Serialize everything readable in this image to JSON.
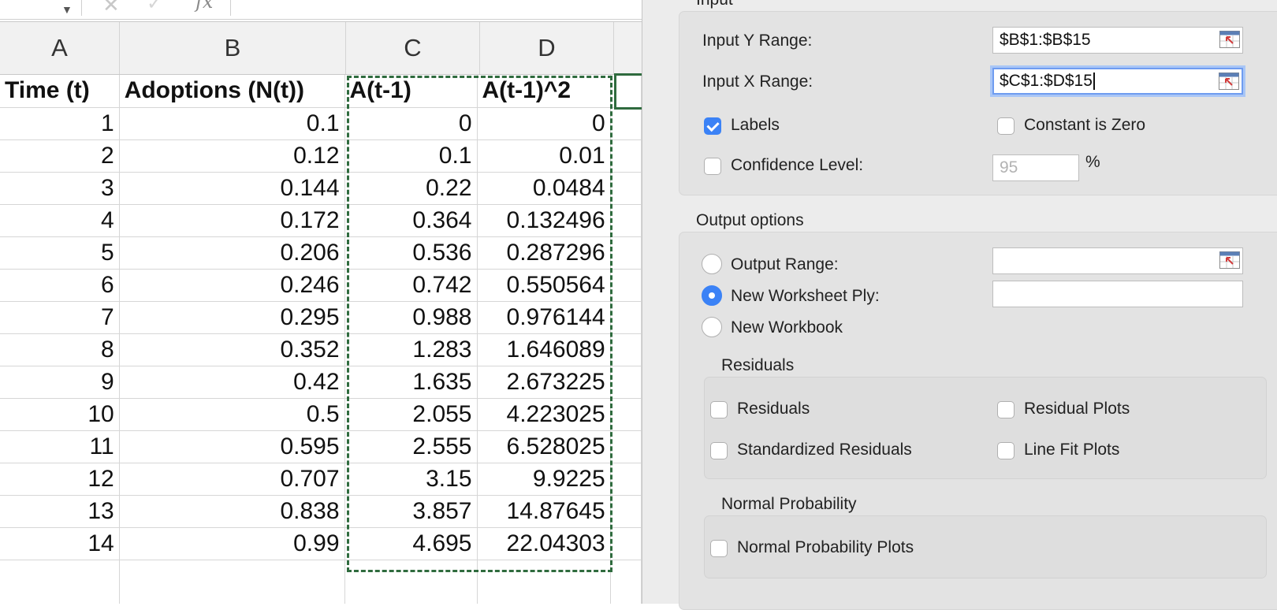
{
  "formula_bar": {
    "fx_label": "fx"
  },
  "columns": [
    "A",
    "B",
    "C",
    "D"
  ],
  "headers": [
    "Time (t)",
    "Adoptions (N(t))",
    "A(t-1)",
    "A(t-1)^2"
  ],
  "rows": [
    [
      "1",
      "0.1",
      "0",
      "0"
    ],
    [
      "2",
      "0.12",
      "0.1",
      "0.01"
    ],
    [
      "3",
      "0.144",
      "0.22",
      "0.0484"
    ],
    [
      "4",
      "0.172",
      "0.364",
      "0.132496"
    ],
    [
      "5",
      "0.206",
      "0.536",
      "0.287296"
    ],
    [
      "6",
      "0.246",
      "0.742",
      "0.550564"
    ],
    [
      "7",
      "0.295",
      "0.988",
      "0.976144"
    ],
    [
      "8",
      "0.352",
      "1.283",
      "1.646089"
    ],
    [
      "9",
      "0.42",
      "1.635",
      "2.673225"
    ],
    [
      "10",
      "0.5",
      "2.055",
      "4.223025"
    ],
    [
      "11",
      "0.595",
      "2.555",
      "6.528025"
    ],
    [
      "12",
      "0.707",
      "3.15",
      "9.9225"
    ],
    [
      "13",
      "0.838",
      "3.857",
      "14.87645"
    ],
    [
      "14",
      "0.99",
      "4.695",
      "22.04303"
    ]
  ],
  "dialog": {
    "input": {
      "section_title": "Input",
      "y_range_label": "Input Y Range:",
      "y_range_value": "$B$1:$B$15",
      "x_range_label": "Input X Range:",
      "x_range_value": "$C$1:$D$15",
      "labels_label": "Labels",
      "labels_checked": true,
      "constant_zero_label": "Constant is Zero",
      "confidence_label": "Confidence Level:",
      "confidence_value": "95",
      "percent_sign": "%"
    },
    "output": {
      "section_title": "Output options",
      "output_range_label": "Output Range:",
      "output_range_value": "",
      "new_ply_label": "New Worksheet Ply:",
      "new_ply_value": "",
      "new_workbook_label": "New Workbook",
      "selected_option": "New Worksheet Ply"
    },
    "residuals": {
      "section_title": "Residuals",
      "residuals_label": "Residuals",
      "residual_plots_label": "Residual Plots",
      "standardized_label": "Standardized Residuals",
      "line_fit_label": "Line Fit Plots"
    },
    "normal_probability": {
      "section_title": "Normal Probability",
      "plots_label": "Normal Probability Plots"
    }
  },
  "colors": {
    "accent": "#3b82f6",
    "selection_border": "#2f6b3e",
    "focus_ring": "#a9c6f6"
  }
}
